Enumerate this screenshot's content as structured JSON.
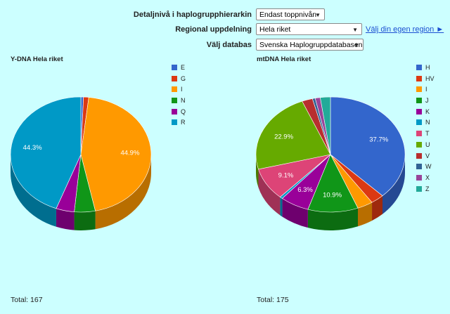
{
  "controls": {
    "detail_label": "Detaljnivå i haplogrupphierarkin",
    "detail_value": "Endast toppnivån",
    "region_label": "Regional uppdelning",
    "region_value": "Hela riket",
    "region_link": "Välj din egen region ►",
    "database_label": "Välj databas",
    "database_value": "Svenska Haplogruppdatabasen"
  },
  "colors": {
    "background": "#ccffff",
    "link": "#1a4ed1"
  },
  "chart_data": [
    {
      "type": "pie",
      "title": "Y-DNA Hela riket",
      "total_label": "Total: 167",
      "slices": [
        {
          "label": "E",
          "value": 0.6,
          "color": "#3366cc"
        },
        {
          "label": "G",
          "value": 1.2,
          "color": "#dc3912"
        },
        {
          "label": "I",
          "value": 44.9,
          "color": "#ff9900",
          "data_label": "44.9%"
        },
        {
          "label": "N",
          "value": 4.8,
          "color": "#109618"
        },
        {
          "label": "Q",
          "value": 4.2,
          "color": "#990099"
        },
        {
          "label": "R",
          "value": 44.3,
          "color": "#0099c6",
          "data_label": "44.3%"
        }
      ]
    },
    {
      "type": "pie",
      "title": "mtDNA Hela riket",
      "total_label": "Total: 175",
      "slices": [
        {
          "label": "H",
          "value": 37.7,
          "color": "#3366cc",
          "data_label": "37.7%"
        },
        {
          "label": "HV",
          "value": 2.9,
          "color": "#dc3912"
        },
        {
          "label": "I",
          "value": 3.4,
          "color": "#ff9900"
        },
        {
          "label": "J",
          "value": 10.9,
          "color": "#109618",
          "data_label": "10.9%"
        },
        {
          "label": "K",
          "value": 6.3,
          "color": "#990099",
          "data_label": "6.3%"
        },
        {
          "label": "N",
          "value": 0.6,
          "color": "#0099c6"
        },
        {
          "label": "T",
          "value": 9.1,
          "color": "#dd4477",
          "data_label": "9.1%"
        },
        {
          "label": "U",
          "value": 22.9,
          "color": "#66aa00",
          "data_label": "22.9%"
        },
        {
          "label": "V",
          "value": 2.3,
          "color": "#b82e2e"
        },
        {
          "label": "W",
          "value": 0.6,
          "color": "#316395"
        },
        {
          "label": "X",
          "value": 1.1,
          "color": "#994499"
        },
        {
          "label": "Z",
          "value": 2.2,
          "color": "#22aa99"
        }
      ]
    }
  ]
}
